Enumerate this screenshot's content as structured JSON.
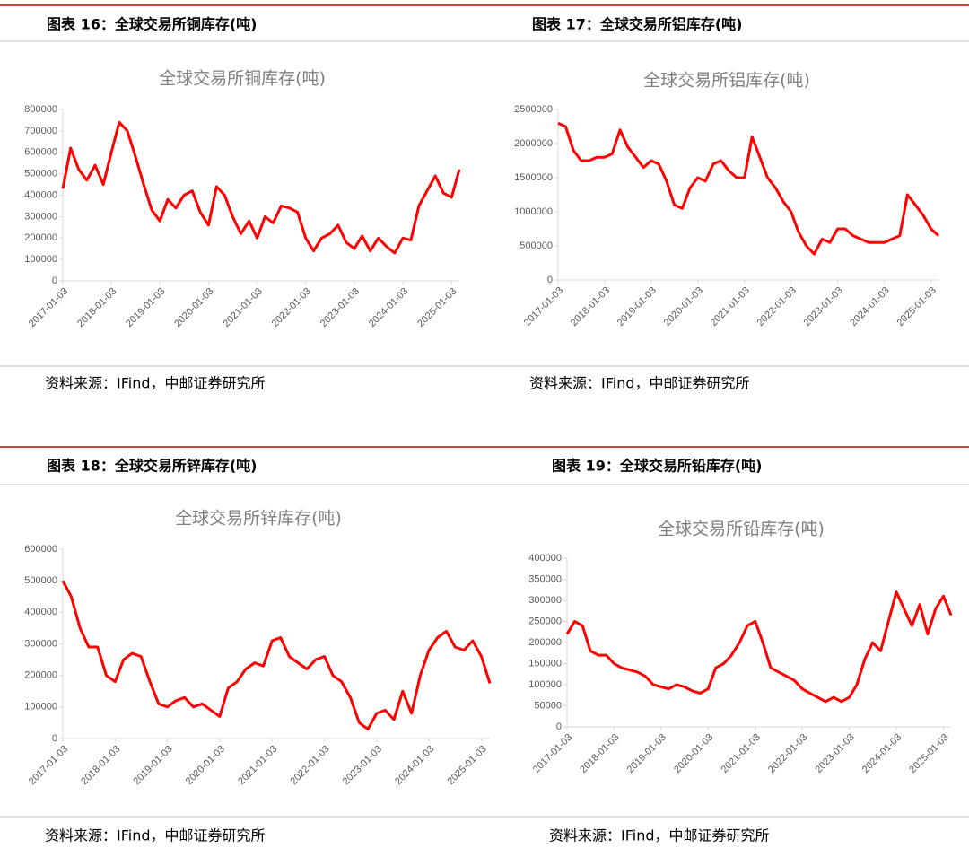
{
  "chart_data": [
    {
      "type": "line",
      "header": "图表 16：全球交易所铜库存(吨)",
      "title": "全球交易所铜库存(吨)",
      "source": "资料来源：IFind，中邮证券研究所",
      "x": [
        "2017-01-03",
        "2017-03-03",
        "2017-05-03",
        "2017-07-03",
        "2017-09-03",
        "2017-11-03",
        "2018-01-03",
        "2018-03-03",
        "2018-05-03",
        "2018-07-03",
        "2018-09-03",
        "2018-11-03",
        "2019-01-03",
        "2019-03-03",
        "2019-05-03",
        "2019-07-03",
        "2019-09-03",
        "2019-11-03",
        "2020-01-03",
        "2020-03-03",
        "2020-05-03",
        "2020-07-03",
        "2020-09-03",
        "2020-11-03",
        "2021-01-03",
        "2021-03-03",
        "2021-05-03",
        "2021-07-03",
        "2021-09-03",
        "2021-11-03",
        "2022-01-03",
        "2022-03-03",
        "2022-05-03",
        "2022-07-03",
        "2022-09-03",
        "2022-11-03",
        "2023-01-03",
        "2023-03-03",
        "2023-05-03",
        "2023-07-03",
        "2023-09-03",
        "2023-11-03",
        "2024-01-03",
        "2024-03-03",
        "2024-05-03",
        "2024-07-03",
        "2024-09-03",
        "2024-11-03",
        "2025-01-03",
        "2025-03-03"
      ],
      "values": [
        430000,
        620000,
        520000,
        470000,
        540000,
        450000,
        600000,
        740000,
        700000,
        580000,
        450000,
        330000,
        280000,
        380000,
        340000,
        400000,
        420000,
        320000,
        260000,
        440000,
        400000,
        300000,
        220000,
        280000,
        200000,
        300000,
        270000,
        350000,
        340000,
        320000,
        200000,
        140000,
        200000,
        220000,
        260000,
        180000,
        150000,
        210000,
        140000,
        200000,
        160000,
        130000,
        200000,
        190000,
        350000,
        420000,
        490000,
        410000,
        390000,
        520000
      ],
      "color": "#ff0000",
      "xlim": [
        "2017-01-03",
        "2025-03-03"
      ],
      "xticks": [
        "2017-01-03",
        "2018-01-03",
        "2019-01-03",
        "2020-01-03",
        "2021-01-03",
        "2022-01-03",
        "2023-01-03",
        "2024-01-03",
        "2025-01-03"
      ],
      "ylim": [
        0,
        800000
      ],
      "yticks": [
        0,
        100000,
        200000,
        300000,
        400000,
        500000,
        600000,
        700000,
        800000
      ]
    },
    {
      "type": "line",
      "header": "图表 17：全球交易所铝库存(吨)",
      "title": "全球交易所铝库存(吨)",
      "source": "资料来源：IFind，中邮证券研究所",
      "x": [
        "2017-01-03",
        "2017-03-03",
        "2017-05-03",
        "2017-07-03",
        "2017-09-03",
        "2017-11-03",
        "2018-01-03",
        "2018-03-03",
        "2018-05-03",
        "2018-07-03",
        "2018-09-03",
        "2018-11-03",
        "2019-01-03",
        "2019-03-03",
        "2019-05-03",
        "2019-07-03",
        "2019-09-03",
        "2019-11-03",
        "2020-01-03",
        "2020-03-03",
        "2020-05-03",
        "2020-07-03",
        "2020-09-03",
        "2020-11-03",
        "2021-01-03",
        "2021-03-03",
        "2021-05-03",
        "2021-07-03",
        "2021-09-03",
        "2021-11-03",
        "2022-01-03",
        "2022-03-03",
        "2022-05-03",
        "2022-07-03",
        "2022-09-03",
        "2022-11-03",
        "2023-01-03",
        "2023-03-03",
        "2023-05-03",
        "2023-07-03",
        "2023-09-03",
        "2023-11-03",
        "2024-01-03",
        "2024-03-03",
        "2024-05-03",
        "2024-07-03",
        "2024-09-03",
        "2024-11-03",
        "2025-01-03",
        "2025-03-03"
      ],
      "values": [
        2300000,
        2250000,
        1900000,
        1750000,
        1750000,
        1800000,
        1800000,
        1850000,
        2200000,
        1950000,
        1800000,
        1650000,
        1750000,
        1700000,
        1450000,
        1100000,
        1050000,
        1350000,
        1500000,
        1450000,
        1700000,
        1750000,
        1600000,
        1500000,
        1500000,
        2100000,
        1800000,
        1500000,
        1350000,
        1150000,
        1000000,
        700000,
        500000,
        380000,
        600000,
        550000,
        750000,
        750000,
        650000,
        600000,
        550000,
        550000,
        550000,
        600000,
        650000,
        1250000,
        1100000,
        950000,
        750000,
        650000
      ],
      "color": "#ff0000",
      "xlim": [
        "2017-01-03",
        "2025-03-03"
      ],
      "xticks": [
        "2017-01-03",
        "2018-01-03",
        "2019-01-03",
        "2020-01-03",
        "2021-01-03",
        "2022-01-03",
        "2023-01-03",
        "2024-01-03",
        "2025-01-03"
      ],
      "ylim": [
        0,
        2500000
      ],
      "yticks": [
        0,
        500000,
        1000000,
        1500000,
        2000000,
        2500000
      ]
    },
    {
      "type": "line",
      "header": "图表 18：全球交易所锌库存(吨)",
      "title": "全球交易所锌库存(吨)",
      "source": "资料来源：IFind，中邮证券研究所",
      "x": [
        "2017-01-03",
        "2017-03-03",
        "2017-05-03",
        "2017-07-03",
        "2017-09-03",
        "2017-11-03",
        "2018-01-03",
        "2018-03-03",
        "2018-05-03",
        "2018-07-03",
        "2018-09-03",
        "2018-11-03",
        "2019-01-03",
        "2019-03-03",
        "2019-05-03",
        "2019-07-03",
        "2019-09-03",
        "2019-11-03",
        "2020-01-03",
        "2020-03-03",
        "2020-05-03",
        "2020-07-03",
        "2020-09-03",
        "2020-11-03",
        "2021-01-03",
        "2021-03-03",
        "2021-05-03",
        "2021-07-03",
        "2021-09-03",
        "2021-11-03",
        "2022-01-03",
        "2022-03-03",
        "2022-05-03",
        "2022-07-03",
        "2022-09-03",
        "2022-11-03",
        "2023-01-03",
        "2023-03-03",
        "2023-05-03",
        "2023-07-03",
        "2023-09-03",
        "2023-11-03",
        "2024-01-03",
        "2024-03-03",
        "2024-05-03",
        "2024-07-03",
        "2024-09-03",
        "2024-11-03",
        "2025-01-03",
        "2025-03-03"
      ],
      "values": [
        500000,
        450000,
        350000,
        290000,
        290000,
        200000,
        180000,
        250000,
        270000,
        260000,
        180000,
        110000,
        100000,
        120000,
        130000,
        100000,
        110000,
        90000,
        70000,
        160000,
        180000,
        220000,
        240000,
        230000,
        310000,
        320000,
        260000,
        240000,
        220000,
        250000,
        260000,
        200000,
        180000,
        130000,
        50000,
        30000,
        80000,
        90000,
        60000,
        150000,
        80000,
        200000,
        280000,
        320000,
        340000,
        290000,
        280000,
        310000,
        260000,
        175000
      ],
      "color": "#ff0000",
      "xlim": [
        "2017-01-03",
        "2025-03-03"
      ],
      "xticks": [
        "2017-01-03",
        "2018-01-03",
        "2019-01-03",
        "2020-01-03",
        "2021-01-03",
        "2022-01-03",
        "2023-01-03",
        "2024-01-03",
        "2025-01-03"
      ],
      "ylim": [
        0,
        600000
      ],
      "yticks": [
        0,
        100000,
        200000,
        300000,
        400000,
        500000,
        600000
      ]
    },
    {
      "type": "line",
      "header": "图表 19：全球交易所铅库存(吨)",
      "title": "全球交易所铅库存(吨)",
      "source": "资料来源：IFind，中邮证券研究所",
      "x": [
        "2017-01-03",
        "2017-03-03",
        "2017-05-03",
        "2017-07-03",
        "2017-09-03",
        "2017-11-03",
        "2018-01-03",
        "2018-03-03",
        "2018-05-03",
        "2018-07-03",
        "2018-09-03",
        "2018-11-03",
        "2019-01-03",
        "2019-03-03",
        "2019-05-03",
        "2019-07-03",
        "2019-09-03",
        "2019-11-03",
        "2020-01-03",
        "2020-03-03",
        "2020-05-03",
        "2020-07-03",
        "2020-09-03",
        "2020-11-03",
        "2021-01-03",
        "2021-03-03",
        "2021-05-03",
        "2021-07-03",
        "2021-09-03",
        "2021-11-03",
        "2022-01-03",
        "2022-03-03",
        "2022-05-03",
        "2022-07-03",
        "2022-09-03",
        "2022-11-03",
        "2023-01-03",
        "2023-03-03",
        "2023-05-03",
        "2023-07-03",
        "2023-09-03",
        "2023-11-03",
        "2024-01-03",
        "2024-03-03",
        "2024-05-03",
        "2024-07-03",
        "2024-09-03",
        "2024-11-03",
        "2025-01-03",
        "2025-03-03"
      ],
      "values": [
        220000,
        250000,
        240000,
        180000,
        170000,
        170000,
        150000,
        140000,
        135000,
        130000,
        120000,
        100000,
        95000,
        90000,
        100000,
        95000,
        85000,
        80000,
        90000,
        140000,
        150000,
        170000,
        200000,
        240000,
        250000,
        200000,
        140000,
        130000,
        120000,
        110000,
        90000,
        80000,
        70000,
        60000,
        70000,
        60000,
        70000,
        100000,
        160000,
        200000,
        180000,
        250000,
        320000,
        280000,
        240000,
        290000,
        220000,
        280000,
        310000,
        265000
      ],
      "color": "#ff0000",
      "xlim": [
        "2017-01-03",
        "2025-03-03"
      ],
      "xticks": [
        "2017-01-03",
        "2018-01-03",
        "2019-01-03",
        "2020-01-03",
        "2021-01-03",
        "2022-01-03",
        "2023-01-03",
        "2024-01-03",
        "2025-01-03"
      ],
      "ylim": [
        0,
        400000
      ],
      "yticks": [
        0,
        50000,
        100000,
        150000,
        200000,
        250000,
        300000,
        350000,
        400000
      ]
    }
  ]
}
